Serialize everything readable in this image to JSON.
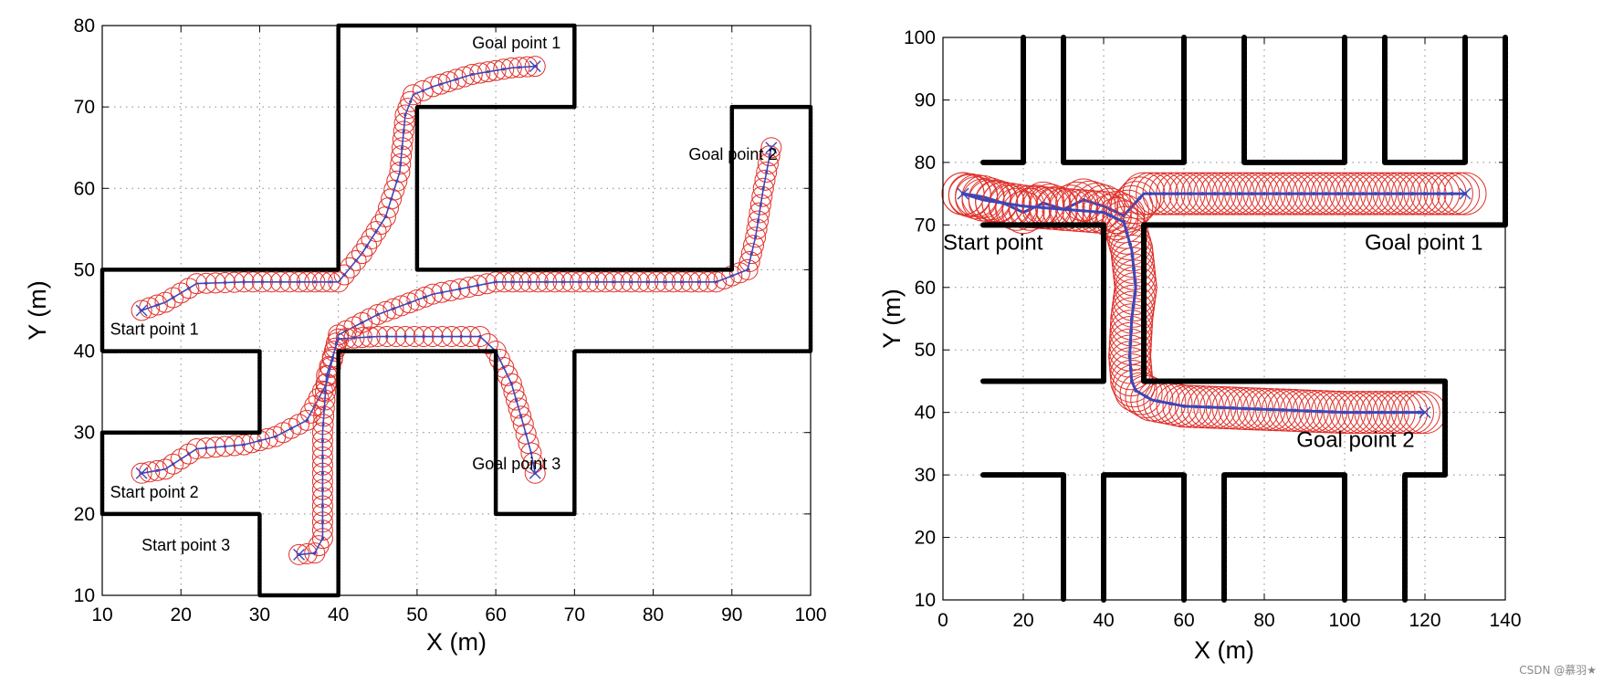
{
  "chart_data": [
    {
      "type": "line",
      "title": "",
      "xlabel": "X (m)",
      "ylabel": "Y (m)",
      "xlim": [
        10,
        100
      ],
      "ylim": [
        10,
        80
      ],
      "xticks": [
        10,
        20,
        30,
        40,
        50,
        60,
        70,
        80,
        90,
        100
      ],
      "yticks": [
        10,
        20,
        30,
        40,
        50,
        60,
        70,
        80
      ],
      "xtick_labels": [
        "10",
        "20",
        "30",
        "40",
        "50",
        "60",
        "70",
        "80",
        "90",
        "100"
      ],
      "ytick_labels": [
        "10",
        "20",
        "30",
        "40",
        "50",
        "60",
        "70",
        "80"
      ],
      "grid": true,
      "walls": [
        [
          [
            10,
            50
          ],
          [
            40,
            50
          ],
          [
            40,
            80
          ],
          [
            70,
            80
          ],
          [
            70,
            70
          ],
          [
            50,
            70
          ],
          [
            50,
            50
          ],
          [
            90,
            50
          ],
          [
            90,
            70
          ],
          [
            100,
            70
          ],
          [
            100,
            40
          ],
          [
            70,
            40
          ],
          [
            70,
            20
          ],
          [
            60,
            20
          ],
          [
            60,
            40
          ],
          [
            40,
            40
          ],
          [
            40,
            10
          ],
          [
            30,
            10
          ],
          [
            30,
            20
          ],
          [
            10,
            20
          ],
          [
            10,
            30
          ],
          [
            30,
            30
          ],
          [
            30,
            40
          ],
          [
            10,
            40
          ],
          [
            10,
            50
          ]
        ]
      ],
      "annotations": [
        {
          "text": "Goal point 1",
          "x": 57,
          "y": 77.2
        },
        {
          "text": "Goal point 2",
          "x": 84.5,
          "y": 63.5
        },
        {
          "text": "Start point 1",
          "x": 11,
          "y": 42
        },
        {
          "text": "Start point 2",
          "x": 11,
          "y": 22
        },
        {
          "text": "Goal point 3",
          "x": 57,
          "y": 25.5
        },
        {
          "text": "Start point 3",
          "x": 15,
          "y": 15.5
        }
      ],
      "series": [
        {
          "name": "path 1",
          "x": [
            15,
            18,
            22,
            28,
            35,
            40,
            43,
            46,
            47.8,
            48.5,
            49.5,
            52,
            57,
            62,
            65
          ],
          "y": [
            45,
            46,
            48.3,
            48.5,
            48.5,
            48.5,
            52,
            56.5,
            62,
            69,
            71.5,
            72.5,
            74,
            74.8,
            75
          ]
        },
        {
          "name": "path 2",
          "x": [
            15,
            18,
            22,
            28,
            32,
            36,
            38.5,
            40,
            45,
            52,
            60,
            75,
            88,
            92,
            93,
            94,
            95
          ],
          "y": [
            25,
            25.5,
            28,
            28.5,
            29.5,
            31.5,
            36,
            42,
            44.5,
            47,
            48.5,
            48.5,
            48.5,
            50,
            54,
            60,
            65
          ]
        },
        {
          "name": "path 3",
          "x": [
            35,
            37,
            38,
            38,
            38,
            38.5,
            40,
            45,
            52,
            58,
            60,
            62,
            63.5,
            64.5,
            65
          ],
          "y": [
            15,
            15.2,
            17,
            22,
            30,
            37,
            41.5,
            41.8,
            41.8,
            41.8,
            40,
            36,
            31,
            27.5,
            25
          ]
        }
      ],
      "markers": [
        [
          65,
          75
        ],
        [
          95,
          65
        ],
        [
          15,
          45
        ],
        [
          15,
          25
        ],
        [
          65,
          25
        ],
        [
          35,
          15
        ]
      ]
    },
    {
      "type": "line",
      "title": "",
      "xlabel": "X (m)",
      "ylabel": "Y (m)",
      "xlim": [
        0,
        140
      ],
      "ylim": [
        10,
        100
      ],
      "xticks": [
        0,
        20,
        40,
        60,
        80,
        100,
        120,
        140
      ],
      "yticks": [
        10,
        20,
        30,
        40,
        50,
        60,
        70,
        80,
        90,
        100
      ],
      "xtick_labels": [
        "0",
        "20",
        "40",
        "60",
        "80",
        "100",
        "120",
        "140"
      ],
      "ytick_labels": [
        "10",
        "20",
        "30",
        "40",
        "50",
        "60",
        "70",
        "80",
        "90",
        "100"
      ],
      "grid": true,
      "walls": [
        [
          [
            10,
            80
          ],
          [
            20,
            80
          ],
          [
            20,
            100
          ]
        ],
        [
          [
            30,
            100
          ],
          [
            30,
            80
          ],
          [
            60,
            80
          ],
          [
            60,
            100
          ]
        ],
        [
          [
            75,
            100
          ],
          [
            75,
            80
          ],
          [
            100,
            80
          ],
          [
            100,
            100
          ]
        ],
        [
          [
            110,
            100
          ],
          [
            110,
            80
          ],
          [
            130,
            80
          ],
          [
            130,
            100
          ]
        ],
        [
          [
            140,
            100
          ],
          [
            140,
            70
          ],
          [
            50,
            70
          ],
          [
            50,
            45
          ],
          [
            125,
            45
          ],
          [
            125,
            30
          ],
          [
            115,
            30
          ],
          [
            115,
            10
          ]
        ],
        [
          [
            10,
            70
          ],
          [
            40,
            70
          ],
          [
            40,
            45
          ],
          [
            10,
            45
          ]
        ],
        [
          [
            10,
            30
          ],
          [
            30,
            30
          ],
          [
            30,
            10
          ]
        ],
        [
          [
            40,
            10
          ],
          [
            40,
            30
          ],
          [
            60,
            30
          ],
          [
            60,
            10
          ]
        ],
        [
          [
            70,
            10
          ],
          [
            70,
            30
          ],
          [
            100,
            30
          ],
          [
            100,
            10
          ]
        ]
      ],
      "annotations": [
        {
          "text": "Start point",
          "x": 0,
          "y": 66
        },
        {
          "text": "Goal point 1",
          "x": 105,
          "y": 66
        },
        {
          "text": "Goal point 2",
          "x": 88,
          "y": 34.5
        }
      ],
      "series": [
        {
          "name": "path 1",
          "x": [
            5,
            10,
            15,
            20,
            25,
            30,
            35,
            40,
            45,
            50,
            60,
            80,
            100,
            120,
            130
          ],
          "y": [
            75,
            74.5,
            73.5,
            72,
            73.5,
            72.5,
            74,
            73,
            71.5,
            75,
            75,
            75,
            75,
            75,
            75
          ]
        },
        {
          "name": "path 2",
          "x": [
            5,
            10,
            20,
            30,
            40,
            45,
            47,
            48,
            47,
            46.5,
            47,
            48,
            52,
            60,
            80,
            100,
            120
          ],
          "y": [
            75,
            74,
            73,
            72.5,
            72,
            70.5,
            66,
            60,
            55,
            49,
            45,
            43.5,
            42,
            41,
            40.5,
            40,
            40
          ]
        }
      ],
      "markers": [
        [
          5,
          75
        ],
        [
          130,
          75
        ],
        [
          120,
          40
        ]
      ]
    }
  ],
  "watermark": "CSDN @慕羽★"
}
